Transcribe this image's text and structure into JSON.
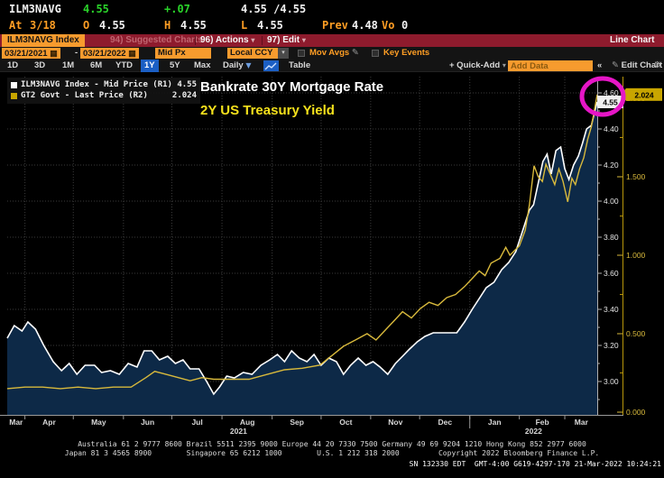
{
  "quote": {
    "ticker": "ILM3NAVG",
    "last": "4.55",
    "change": "+.07",
    "bid_ask": "4.55 /4.55",
    "at_label": "At",
    "at_value": "3/18",
    "open_label": "O",
    "open": "4.55",
    "high_label": "H",
    "high": "4.55",
    "low_label": "L",
    "low": "4.55",
    "prev_label": "Prev",
    "prev": "4.48",
    "vol_label": "Vo",
    "vol": "0"
  },
  "menubar": {
    "security_tab": "ILM3NAVG Index",
    "suggested_charts": "94) Suggested Charts",
    "actions": "96) Actions",
    "edit": "97) Edit",
    "right_label": "Line Chart"
  },
  "toolbar": {
    "date_from": "03/21/2021",
    "date_sep": "-",
    "date_to": "03/21/2022",
    "price_field": "Mid Px",
    "currency": "Local CCY",
    "mov_avgs": "Mov Avgs",
    "key_events": "Key Events",
    "ranges": [
      "1D",
      "3D",
      "1M",
      "6M",
      "YTD",
      "1Y",
      "5Y",
      "Max"
    ],
    "selected_range": "1Y",
    "period": "Daily",
    "table": "Table",
    "quick_add": "+ Quick-Add",
    "add_data_placeholder": "Add Data",
    "collapse": "«",
    "edit_chart": "Edit Chart"
  },
  "legend": [
    {
      "swatch": "#ffffff",
      "label": "ILM3NAVG Index - Mid Price (R1)",
      "value": "4.55"
    },
    {
      "swatch": "#c8a500",
      "label": "GT2 Govt - Last Price (R2)",
      "value": "2.024"
    }
  ],
  "annotations": {
    "line1": "Bankrate 30Y Mortgage Rate",
    "line2": "2Y US Treasury Yield"
  },
  "badges": {
    "r1": "4.55",
    "r2": "2.024"
  },
  "chart_data": {
    "type": "line",
    "title": "Bankrate 30Y Mortgage Rate vs 2Y US Treasury Yield",
    "x_range": [
      "03/21/2021",
      "03/21/2022"
    ],
    "grid": true,
    "legend_position": "top-left",
    "right_axis_1": {
      "name": "R1 - ILM3NAVG Mid Price",
      "ticks": [
        4.6,
        4.4,
        4.2,
        4.0,
        3.8,
        3.6,
        3.4,
        3.2,
        3.0
      ],
      "range": [
        2.83,
        4.66
      ],
      "last": 4.55
    },
    "right_axis_2": {
      "name": "R2 - GT2 Govt Last Price",
      "ticks": [
        2.0,
        1.5,
        1.0,
        0.5,
        0.0
      ],
      "range": [
        -0.07,
        2.1
      ],
      "last": 2.024
    },
    "x_ticks": [
      0.03,
      0.112,
      0.197,
      0.279,
      0.364,
      0.449,
      0.532,
      0.616,
      0.699,
      0.784,
      0.868,
      0.945
    ],
    "year_separator_t": 0.784,
    "x_months": [
      {
        "label": "Mar",
        "t": 0.015
      },
      {
        "label": "Apr",
        "t": 0.071
      },
      {
        "label": "May",
        "t": 0.155
      },
      {
        "label": "Jun",
        "t": 0.238
      },
      {
        "label": "Jul",
        "t": 0.322
      },
      {
        "label": "Aug",
        "t": 0.407
      },
      {
        "label": "Sep",
        "t": 0.491
      },
      {
        "label": "Oct",
        "t": 0.574
      },
      {
        "label": "Nov",
        "t": 0.658
      },
      {
        "label": "Dec",
        "t": 0.742
      },
      {
        "label": "Jan",
        "t": 0.826
      },
      {
        "label": "Feb",
        "t": 0.907
      },
      {
        "label": "Mar",
        "t": 0.973
      }
    ],
    "years": [
      {
        "label": "2021",
        "t": 0.392
      },
      {
        "label": "2022",
        "t": 0.892
      }
    ],
    "series": [
      {
        "name": "ILM3NAVG Index - Mid Price",
        "axis": "R1",
        "color": "#ffffff",
        "fill": "#0d2947",
        "points": [
          [
            0.0,
            3.24
          ],
          [
            0.012,
            3.31
          ],
          [
            0.025,
            3.28
          ],
          [
            0.035,
            3.33
          ],
          [
            0.048,
            3.29
          ],
          [
            0.062,
            3.2
          ],
          [
            0.078,
            3.11
          ],
          [
            0.092,
            3.06
          ],
          [
            0.105,
            3.1
          ],
          [
            0.118,
            3.04
          ],
          [
            0.132,
            3.09
          ],
          [
            0.148,
            3.09
          ],
          [
            0.16,
            3.05
          ],
          [
            0.175,
            3.06
          ],
          [
            0.19,
            3.04
          ],
          [
            0.205,
            3.1
          ],
          [
            0.22,
            3.08
          ],
          [
            0.232,
            3.17
          ],
          [
            0.245,
            3.17
          ],
          [
            0.258,
            3.12
          ],
          [
            0.272,
            3.14
          ],
          [
            0.285,
            3.1
          ],
          [
            0.298,
            3.12
          ],
          [
            0.31,
            3.07
          ],
          [
            0.325,
            3.07
          ],
          [
            0.338,
            3.0
          ],
          [
            0.35,
            2.93
          ],
          [
            0.36,
            2.97
          ],
          [
            0.372,
            3.03
          ],
          [
            0.385,
            3.02
          ],
          [
            0.4,
            3.05
          ],
          [
            0.415,
            3.04
          ],
          [
            0.43,
            3.09
          ],
          [
            0.445,
            3.12
          ],
          [
            0.458,
            3.15
          ],
          [
            0.47,
            3.11
          ],
          [
            0.482,
            3.17
          ],
          [
            0.495,
            3.13
          ],
          [
            0.508,
            3.11
          ],
          [
            0.52,
            3.15
          ],
          [
            0.532,
            3.09
          ],
          [
            0.545,
            3.13
          ],
          [
            0.558,
            3.11
          ],
          [
            0.57,
            3.04
          ],
          [
            0.582,
            3.09
          ],
          [
            0.595,
            3.13
          ],
          [
            0.608,
            3.09
          ],
          [
            0.62,
            3.11
          ],
          [
            0.632,
            3.08
          ],
          [
            0.645,
            3.04
          ],
          [
            0.658,
            3.1
          ],
          [
            0.67,
            3.14
          ],
          [
            0.682,
            3.18
          ],
          [
            0.695,
            3.22
          ],
          [
            0.708,
            3.25
          ],
          [
            0.722,
            3.27
          ],
          [
            0.748,
            3.27
          ],
          [
            0.762,
            3.27
          ],
          [
            0.775,
            3.33
          ],
          [
            0.788,
            3.4
          ],
          [
            0.8,
            3.46
          ],
          [
            0.812,
            3.52
          ],
          [
            0.825,
            3.55
          ],
          [
            0.838,
            3.62
          ],
          [
            0.85,
            3.66
          ],
          [
            0.862,
            3.72
          ],
          [
            0.87,
            3.8
          ],
          [
            0.878,
            3.88
          ],
          [
            0.885,
            3.95
          ],
          [
            0.892,
            3.98
          ],
          [
            0.9,
            4.1
          ],
          [
            0.908,
            4.22
          ],
          [
            0.915,
            4.26
          ],
          [
            0.922,
            4.15
          ],
          [
            0.93,
            4.28
          ],
          [
            0.938,
            4.3
          ],
          [
            0.945,
            4.18
          ],
          [
            0.952,
            4.12
          ],
          [
            0.96,
            4.2
          ],
          [
            0.968,
            4.25
          ],
          [
            0.975,
            4.32
          ],
          [
            0.982,
            4.4
          ],
          [
            0.99,
            4.42
          ],
          [
            0.996,
            4.5
          ],
          [
            1.0,
            4.55
          ]
        ]
      },
      {
        "name": "GT2 Govt - Last Price",
        "axis": "R2",
        "color": "#d8b93c",
        "points": [
          [
            0.0,
            0.15
          ],
          [
            0.03,
            0.16
          ],
          [
            0.06,
            0.16
          ],
          [
            0.09,
            0.15
          ],
          [
            0.12,
            0.16
          ],
          [
            0.15,
            0.15
          ],
          [
            0.18,
            0.16
          ],
          [
            0.21,
            0.16
          ],
          [
            0.235,
            0.22
          ],
          [
            0.25,
            0.26
          ],
          [
            0.27,
            0.24
          ],
          [
            0.29,
            0.22
          ],
          [
            0.31,
            0.2
          ],
          [
            0.33,
            0.22
          ],
          [
            0.35,
            0.21
          ],
          [
            0.38,
            0.21
          ],
          [
            0.41,
            0.21
          ],
          [
            0.44,
            0.24
          ],
          [
            0.47,
            0.27
          ],
          [
            0.5,
            0.28
          ],
          [
            0.53,
            0.3
          ],
          [
            0.55,
            0.36
          ],
          [
            0.57,
            0.42
          ],
          [
            0.59,
            0.46
          ],
          [
            0.61,
            0.5
          ],
          [
            0.625,
            0.46
          ],
          [
            0.64,
            0.52
          ],
          [
            0.655,
            0.58
          ],
          [
            0.67,
            0.64
          ],
          [
            0.685,
            0.6
          ],
          [
            0.7,
            0.66
          ],
          [
            0.715,
            0.7
          ],
          [
            0.73,
            0.68
          ],
          [
            0.745,
            0.73
          ],
          [
            0.76,
            0.75
          ],
          [
            0.775,
            0.8
          ],
          [
            0.79,
            0.86
          ],
          [
            0.8,
            0.9
          ],
          [
            0.81,
            0.87
          ],
          [
            0.82,
            0.95
          ],
          [
            0.835,
            0.98
          ],
          [
            0.845,
            1.05
          ],
          [
            0.852,
            1.0
          ],
          [
            0.86,
            1.03
          ],
          [
            0.868,
            1.06
          ],
          [
            0.878,
            1.16
          ],
          [
            0.885,
            1.32
          ],
          [
            0.893,
            1.57
          ],
          [
            0.9,
            1.5
          ],
          [
            0.907,
            1.47
          ],
          [
            0.913,
            1.58
          ],
          [
            0.92,
            1.52
          ],
          [
            0.928,
            1.45
          ],
          [
            0.935,
            1.55
          ],
          [
            0.942,
            1.47
          ],
          [
            0.95,
            1.34
          ],
          [
            0.957,
            1.49
          ],
          [
            0.963,
            1.45
          ],
          [
            0.97,
            1.55
          ],
          [
            0.977,
            1.62
          ],
          [
            0.984,
            1.74
          ],
          [
            0.99,
            1.82
          ],
          [
            0.995,
            1.92
          ],
          [
            1.0,
            2.024
          ]
        ]
      }
    ]
  },
  "footer": {
    "line1": "Australia 61 2 9777 8600 Brazil 5511 2395 9000 Europe 44 20 7330 7500 Germany 49 69 9204 1210 Hong Kong 852 2977 6000",
    "line2": "Japan 81 3 4565 8900        Singapore 65 6212 1000        U.S. 1 212 318 2000         Copyright 2022 Bloomberg Finance L.P.",
    "line3": "SN 132330 EDT  GMT-4:00 G619-4297-170 21-Mar-2022 10:24:21"
  }
}
